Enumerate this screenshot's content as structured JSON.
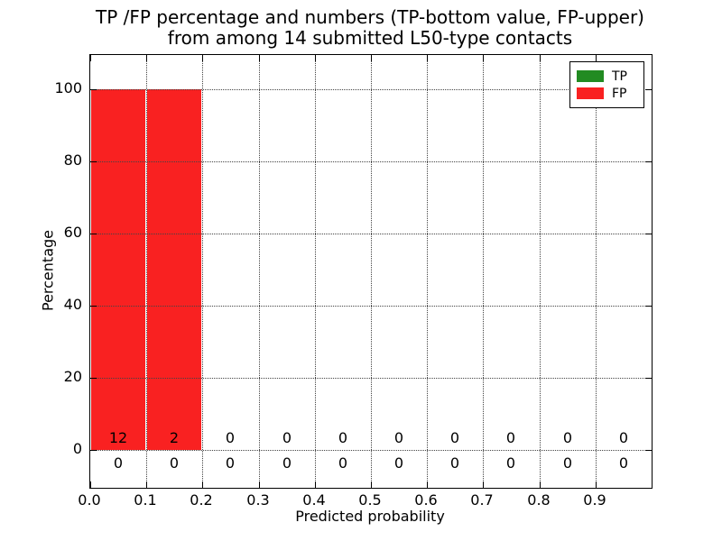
{
  "figure": {
    "title_line1": "TP /FP percentage and numbers (TP-bottom value, FP-upper)",
    "title_line2": "from among 14 submitted L50-type contacts",
    "xlabel": "Predicted probability",
    "ylabel": "Percentage"
  },
  "chart_data": {
    "type": "bar",
    "title": "TP /FP percentage and numbers (TP-bottom value, FP-upper) from among 14 submitted L50-type contacts",
    "xlabel": "Predicted probability",
    "ylabel": "Percentage",
    "total_contacts": 14,
    "xlim": [
      0.0,
      1.0
    ],
    "ylim": [
      -10,
      110
    ],
    "grid": "dotted, both axes",
    "legend_position": "upper right",
    "bin_edges": [
      0.0,
      0.1,
      0.2,
      0.3,
      0.4,
      0.5,
      0.6,
      0.7,
      0.8,
      0.9,
      1.0
    ],
    "bin_centers": [
      0.05,
      0.15,
      0.25,
      0.35,
      0.45,
      0.55,
      0.65,
      0.75,
      0.85,
      0.95
    ],
    "xticklabels": [
      "0.0",
      "0.1",
      "0.2",
      "0.3",
      "0.4",
      "0.5",
      "0.6",
      "0.7",
      "0.8",
      "0.9"
    ],
    "yticklabels": [
      "0",
      "20",
      "40",
      "60",
      "80",
      "100"
    ],
    "ytickvalues": [
      0,
      20,
      40,
      60,
      80,
      100
    ],
    "series": [
      {
        "name": "TP",
        "color": "#228b22",
        "counts": [
          0,
          0,
          0,
          0,
          0,
          0,
          0,
          0,
          0,
          0
        ],
        "percentages": [
          0,
          0,
          0,
          0,
          0,
          0,
          0,
          0,
          0,
          0
        ],
        "count_row": "bottom"
      },
      {
        "name": "FP",
        "color": "#f92121",
        "counts": [
          12,
          2,
          0,
          0,
          0,
          0,
          0,
          0,
          0,
          0
        ],
        "percentages": [
          100,
          100,
          0,
          0,
          0,
          0,
          0,
          0,
          0,
          0
        ],
        "count_row": "upper"
      }
    ]
  }
}
